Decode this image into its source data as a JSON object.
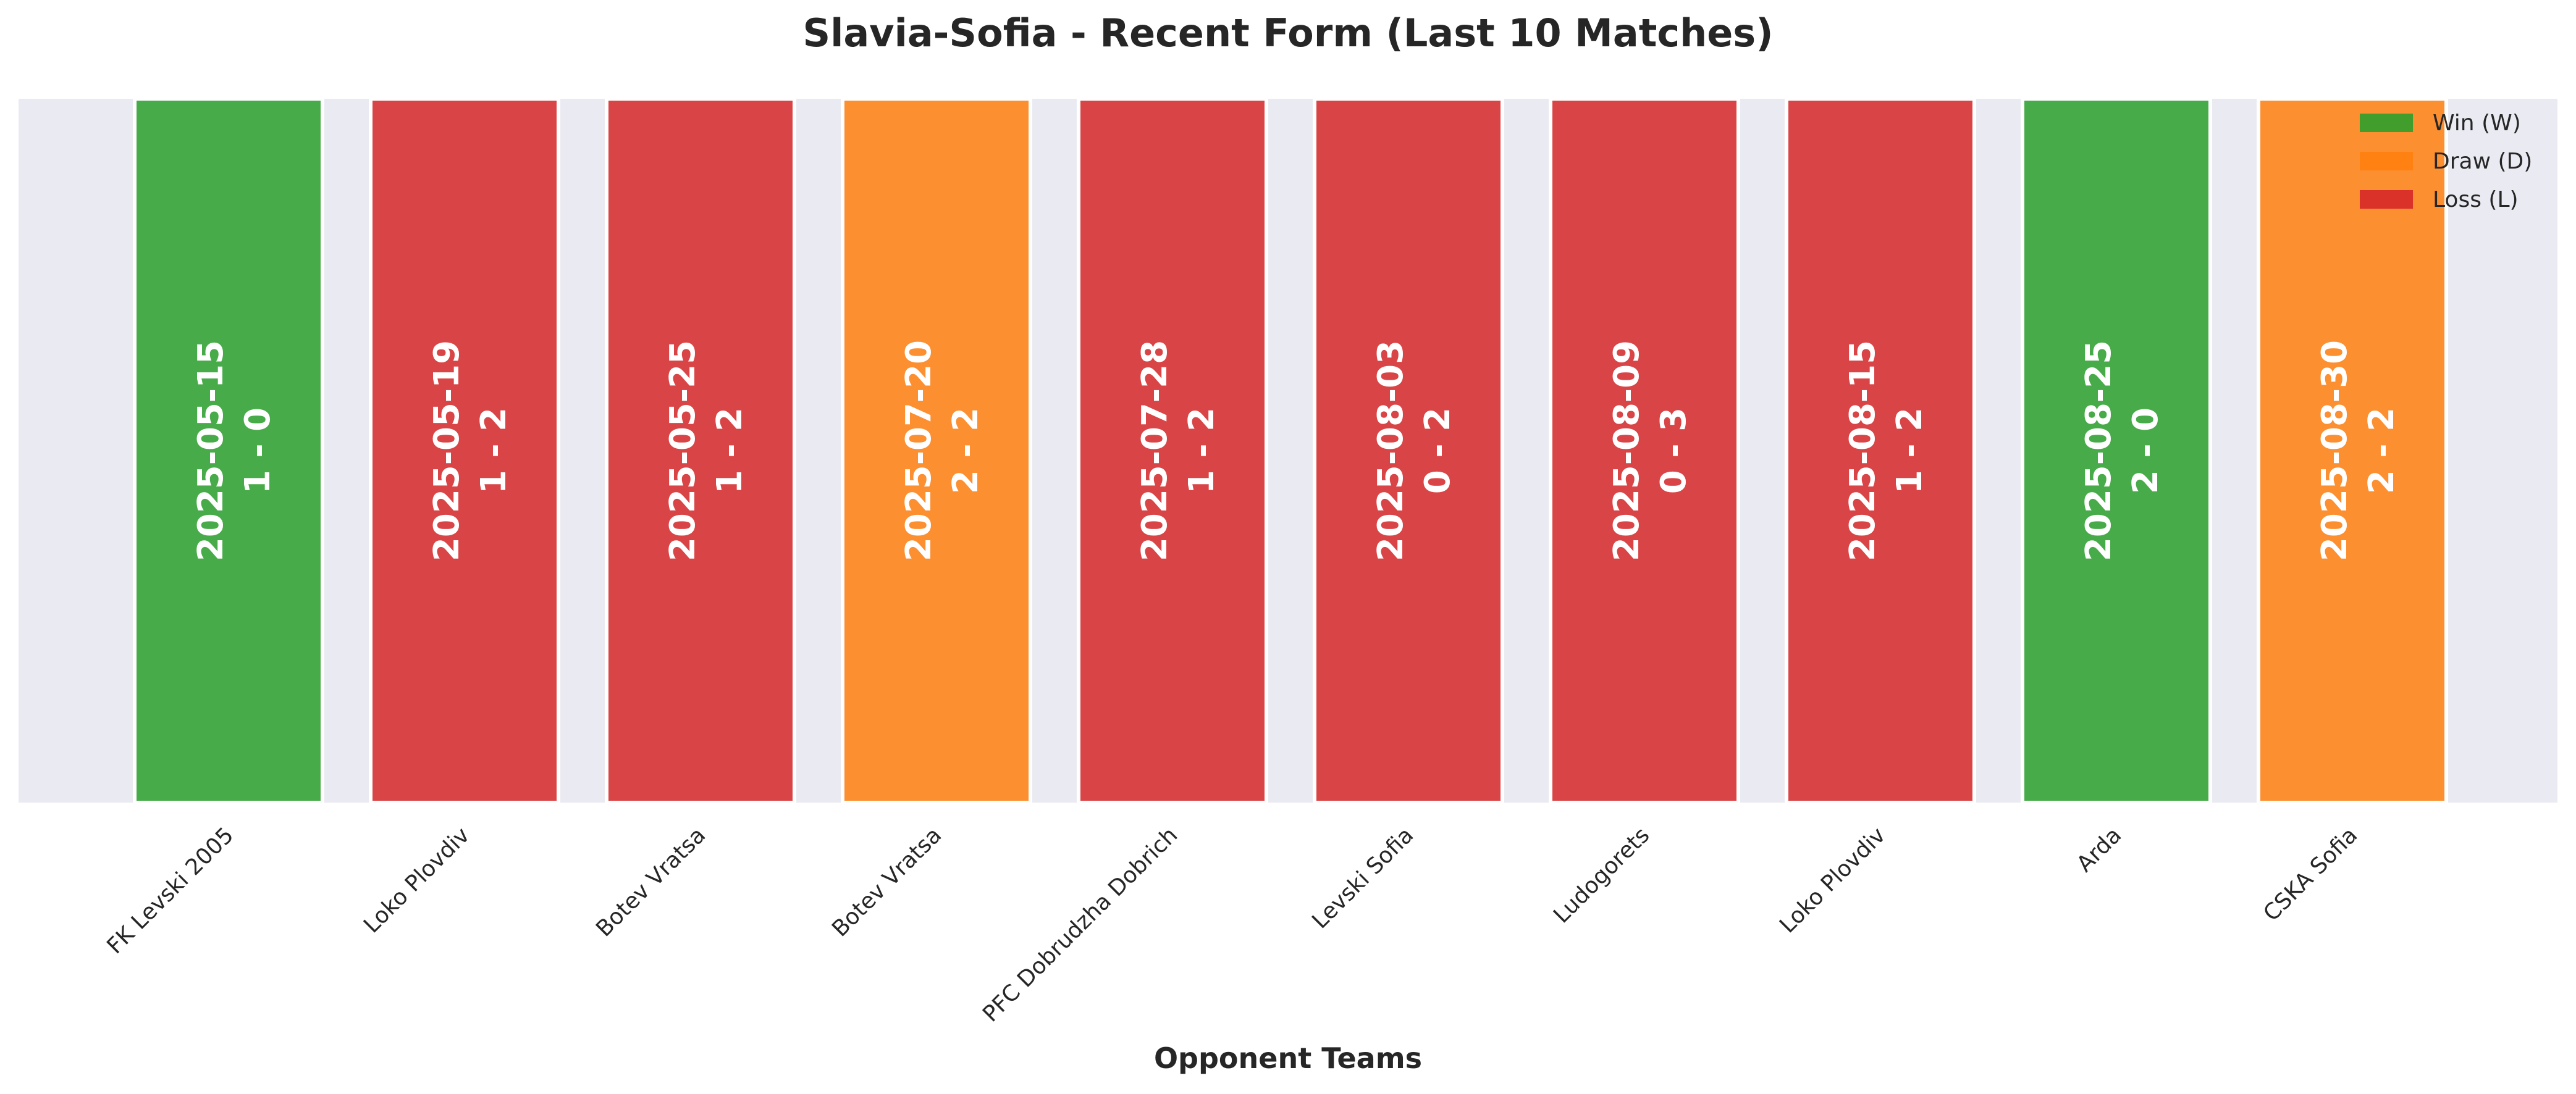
{
  "chart_data": {
    "type": "bar",
    "title": "Slavia-Sofia - Recent Form (Last 10 Matches)",
    "xlabel": "Opponent Teams",
    "ylabel": "",
    "categories": [
      "FK Levski 2005",
      "Loko Plovdiv",
      "Botev Vratsa",
      "Botev Vratsa",
      "PFC Dobrudzha Dobrich",
      "Levski Sofia",
      "Ludogorets",
      "Loko Plovdiv",
      "Arda",
      "CSKA Sofia"
    ],
    "matches": [
      {
        "opponent": "FK Levski 2005",
        "date": "2025-05-15",
        "score": "1 - 0",
        "result": "W"
      },
      {
        "opponent": "Loko Plovdiv",
        "date": "2025-05-19",
        "score": "1 - 2",
        "result": "L"
      },
      {
        "opponent": "Botev Vratsa",
        "date": "2025-05-25",
        "score": "1 - 2",
        "result": "L"
      },
      {
        "opponent": "Botev Vratsa",
        "date": "2025-07-20",
        "score": "2 - 2",
        "result": "D"
      },
      {
        "opponent": "PFC Dobrudzha Dobrich",
        "date": "2025-07-28",
        "score": "1 - 2",
        "result": "L"
      },
      {
        "opponent": "Levski Sofia",
        "date": "2025-08-03",
        "score": "0 - 2",
        "result": "L"
      },
      {
        "opponent": "Ludogorets",
        "date": "2025-08-09",
        "score": "0 - 3",
        "result": "L"
      },
      {
        "opponent": "Loko Plovdiv",
        "date": "2025-08-15",
        "score": "1 - 2",
        "result": "L"
      },
      {
        "opponent": "Arda",
        "date": "2025-08-25",
        "score": "2 - 0",
        "result": "W"
      },
      {
        "opponent": "CSKA Sofia",
        "date": "2025-08-30",
        "score": "2 - 2",
        "result": "D"
      }
    ],
    "legend": {
      "position": "top-right",
      "entries": [
        {
          "key": "W",
          "label": "Win (W)",
          "color": "#2ca02c"
        },
        {
          "key": "D",
          "label": "Draw (D)",
          "color": "#ff7f0e"
        },
        {
          "key": "L",
          "label": "Loss (L)",
          "color": "#d62728"
        }
      ]
    },
    "colors": {
      "plot_background": "#eaeaf2",
      "bar_edge": "#ffffff",
      "bar_text": "#ffffff"
    },
    "grid": false
  }
}
